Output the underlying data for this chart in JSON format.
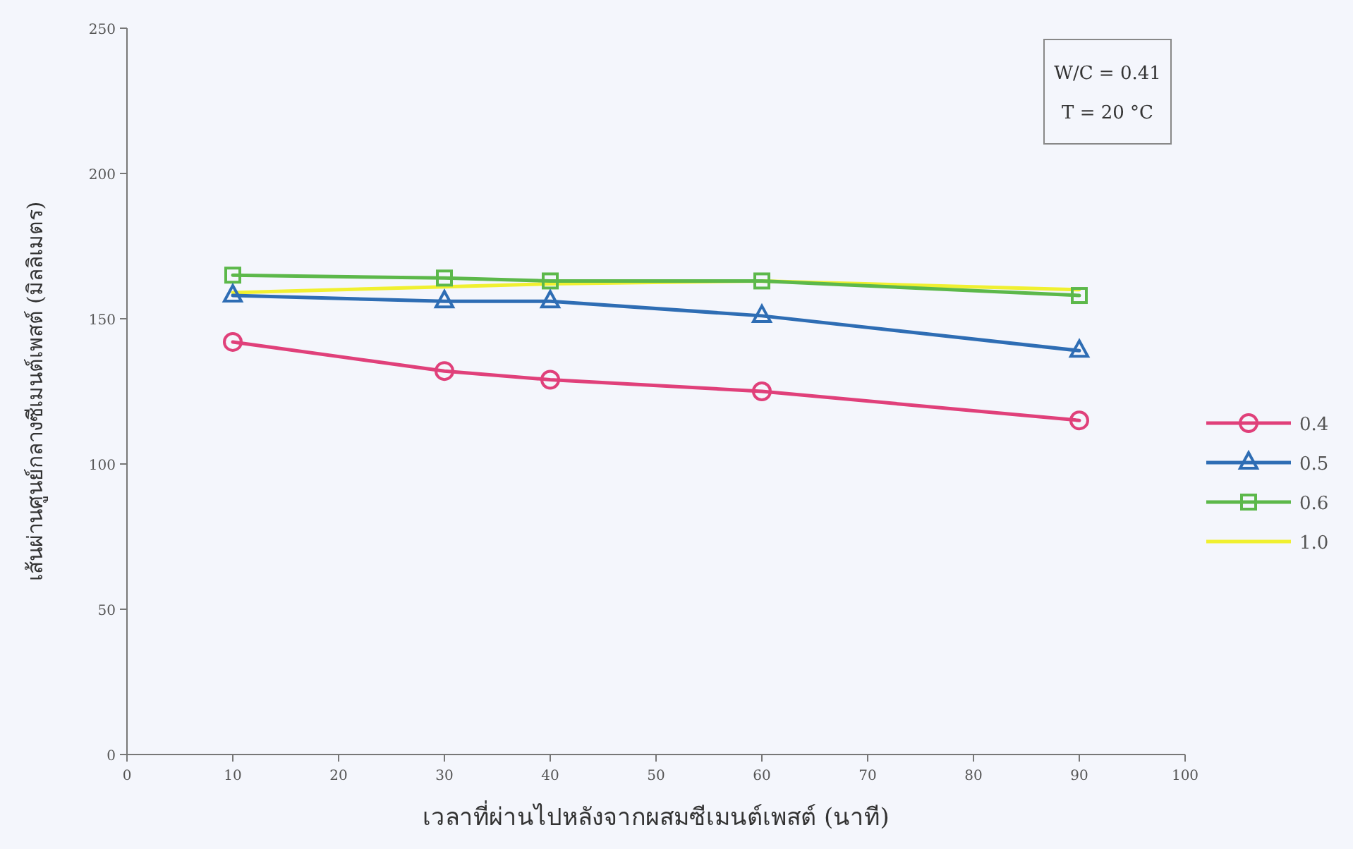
{
  "chart_data": {
    "type": "line",
    "xlabel": "เวลาที่ผ่านไปหลังจากผสมซีเมนต์เพสต์ (นาที)",
    "ylabel": "เส้นผ่านศูนย์กลางซีเมนต์เพสต์ (มิลลิเมตร)",
    "annotations": [
      "W/C = 0.41",
      "T = 20 °C"
    ],
    "x": [
      10,
      30,
      40,
      60,
      90
    ],
    "series": [
      {
        "name": "0.4",
        "color": "#e0407a",
        "marker": "circle",
        "values": [
          142,
          132,
          129,
          125,
          115
        ]
      },
      {
        "name": "0.5",
        "color": "#2e6db4",
        "marker": "triangle",
        "values": [
          158,
          156,
          156,
          151,
          139
        ]
      },
      {
        "name": "0.6",
        "color": "#5cb84a",
        "marker": "square",
        "values": [
          165,
          164,
          163,
          163,
          158
        ]
      },
      {
        "name": "1.0",
        "color": "#f0f030",
        "marker": "none",
        "values": [
          159,
          161,
          162,
          163,
          160
        ]
      }
    ],
    "xlim": [
      0,
      100
    ],
    "xticks": [
      0,
      10,
      20,
      30,
      40,
      50,
      60,
      70,
      80,
      90,
      100
    ],
    "ylim": [
      0,
      250
    ],
    "yticks": [
      0,
      50,
      100,
      150,
      200,
      250
    ],
    "legend": "right",
    "grid": false
  }
}
